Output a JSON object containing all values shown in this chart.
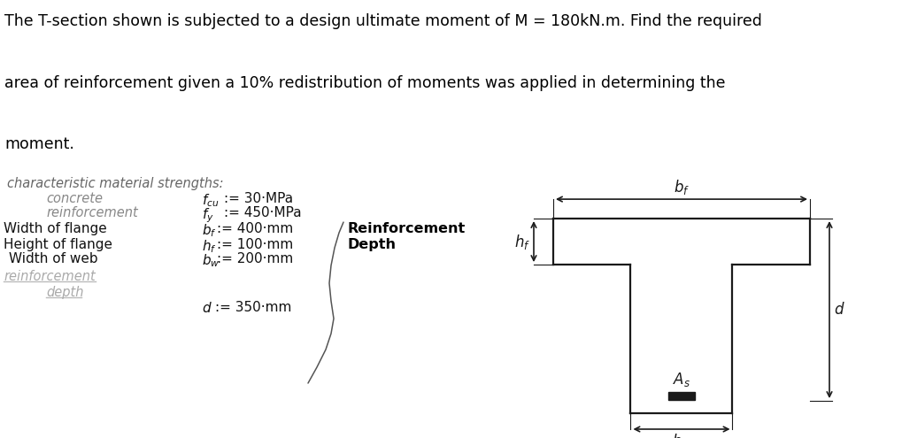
{
  "title_line1": "The T-section shown is subjected to a design ultimate moment of M = 180kN.m. Find the required",
  "title_line2": "area of reinforcement given a 10% redistribution of moments was applied in determining the",
  "title_line3": "moment.",
  "top_bg": "#ffffff",
  "panel_bg": "#d0d0d0",
  "header": "characteristic material strengths:",
  "concrete_lbl": "concrete",
  "reinf_lbl": "reinforcement",
  "fcu_eq": "$f_{cu}$:= 30·MPa",
  "fy_eq": "$f_y$:= 450·MPa",
  "bf_lbl": "Width of flange",
  "bf_eq": "$b_f$:= 400·mm",
  "hf_lbl": "Height of flange",
  "hf_eq": "$h_f$:= 100·mm",
  "bw_lbl": "Width of web",
  "bw_eq": "$b_w$:= 200·mm",
  "reinf_lbl2": "reinforcement",
  "depth_lbl": "depth",
  "d_eq": "$d$:= 350·mm",
  "rd_text1": "Reinforcement",
  "rd_text2": "Depth"
}
